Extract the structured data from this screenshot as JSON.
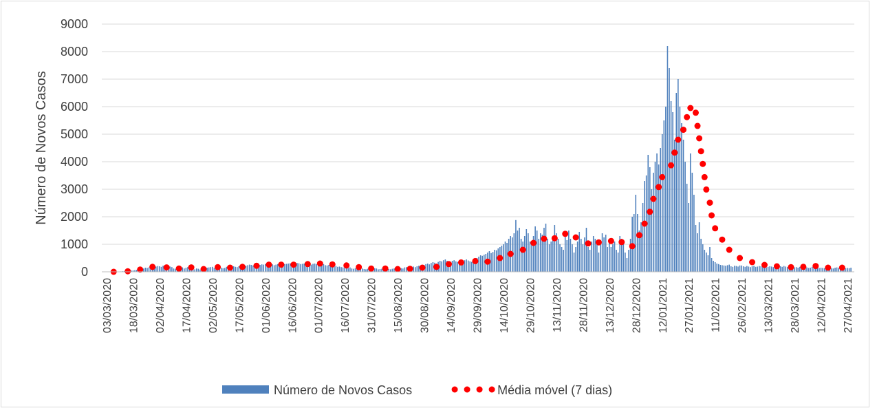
{
  "chart_data": {
    "type": "combo",
    "y_label": "Número de Novos Casos",
    "ylim": [
      0,
      9000
    ],
    "yticks": [
      0,
      1000,
      2000,
      3000,
      4000,
      5000,
      6000,
      7000,
      8000,
      9000
    ],
    "grid": true,
    "legend": "bottom",
    "categories": [
      "03/03/2020",
      null,
      null,
      null,
      null,
      null,
      null,
      null,
      null,
      null,
      null,
      null,
      null,
      null,
      null,
      "18/03/2020",
      null,
      null,
      null,
      null,
      null,
      null,
      null,
      null,
      null,
      null,
      null,
      null,
      null,
      null,
      "02/04/2020",
      null,
      null,
      null,
      null,
      null,
      null,
      null,
      null,
      null,
      null,
      null,
      null,
      null,
      null,
      "17/04/2020",
      null,
      null,
      null,
      null,
      null,
      null,
      null,
      null,
      null,
      null,
      null,
      null,
      null,
      null,
      "02/05/2020",
      null,
      null,
      null,
      null,
      null,
      null,
      null,
      null,
      null,
      null,
      null,
      null,
      null,
      null,
      "17/05/2020",
      null,
      null,
      null,
      null,
      null,
      null,
      null,
      null,
      null,
      null,
      null,
      null,
      null,
      null,
      "01/06/2020",
      null,
      null,
      null,
      null,
      null,
      null,
      null,
      null,
      null,
      null,
      null,
      null,
      null,
      null,
      "16/06/2020",
      null,
      null,
      null,
      null,
      null,
      null,
      null,
      null,
      null,
      null,
      null,
      null,
      null,
      null,
      "01/07/2020",
      null,
      null,
      null,
      null,
      null,
      null,
      null,
      null,
      null,
      null,
      null,
      null,
      null,
      null,
      "16/07/2020",
      null,
      null,
      null,
      null,
      null,
      null,
      null,
      null,
      null,
      null,
      null,
      null,
      null,
      null,
      "31/07/2020",
      null,
      null,
      null,
      null,
      null,
      null,
      null,
      null,
      null,
      null,
      null,
      null,
      null,
      null,
      "15/08/2020",
      null,
      null,
      null,
      null,
      null,
      null,
      null,
      null,
      null,
      null,
      null,
      null,
      null,
      null,
      "30/08/2020",
      null,
      null,
      null,
      null,
      null,
      null,
      null,
      null,
      null,
      null,
      null,
      null,
      null,
      null,
      "14/09/2020",
      null,
      null,
      null,
      null,
      null,
      null,
      null,
      null,
      null,
      null,
      null,
      null,
      null,
      null,
      "29/09/2020",
      null,
      null,
      null,
      null,
      null,
      null,
      null,
      null,
      null,
      null,
      null,
      null,
      null,
      null,
      "14/10/2020",
      null,
      null,
      null,
      null,
      null,
      null,
      null,
      null,
      null,
      null,
      null,
      null,
      null,
      null,
      "29/10/2020",
      null,
      null,
      null,
      null,
      null,
      null,
      null,
      null,
      null,
      null,
      null,
      null,
      null,
      null,
      "13/11/2020",
      null,
      null,
      null,
      null,
      null,
      null,
      null,
      null,
      null,
      null,
      null,
      null,
      null,
      null,
      "28/11/2020",
      null,
      null,
      null,
      null,
      null,
      null,
      null,
      null,
      null,
      null,
      null,
      null,
      null,
      null,
      "13/12/2020",
      null,
      null,
      null,
      null,
      null,
      null,
      null,
      null,
      null,
      null,
      null,
      null,
      null,
      null,
      "28/12/2020",
      null,
      null,
      null,
      null,
      null,
      null,
      null,
      null,
      null,
      null,
      null,
      null,
      null,
      null,
      "12/01/2021",
      null,
      null,
      null,
      null,
      null,
      null,
      null,
      null,
      null,
      null,
      null,
      null,
      null,
      null,
      "27/01/2021",
      null,
      null,
      null,
      null,
      null,
      null,
      null,
      null,
      null,
      null,
      null,
      null,
      null,
      null,
      "11/02/2021",
      null,
      null,
      null,
      null,
      null,
      null,
      null,
      null,
      null,
      null,
      null,
      null,
      null,
      null,
      "26/02/2021",
      null,
      null,
      null,
      null,
      null,
      null,
      null,
      null,
      null,
      null,
      null,
      null,
      null,
      null,
      "13/03/2021",
      null,
      null,
      null,
      null,
      null,
      null,
      null,
      null,
      null,
      null,
      null,
      null,
      null,
      null,
      "28/03/2021",
      null,
      null,
      null,
      null,
      null,
      null,
      null,
      null,
      null,
      null,
      null,
      null,
      null,
      null,
      "12/04/2021",
      null,
      null,
      null,
      null,
      null,
      null,
      null,
      null,
      null,
      null,
      null,
      null,
      null,
      null,
      "27/04/2021",
      null,
      null
    ],
    "series": [
      {
        "name": "Número de Novos Casos",
        "type": "bar",
        "color": "#4f81bd",
        "values": [
          0,
          0,
          1,
          2,
          3,
          5,
          8,
          10,
          15,
          20,
          25,
          30,
          35,
          40,
          45,
          50,
          60,
          70,
          80,
          90,
          100,
          120,
          150,
          140,
          160,
          180,
          200,
          170,
          190,
          210,
          200,
          180,
          220,
          160,
          150,
          140,
          190,
          170,
          120,
          110,
          150,
          130,
          140,
          160,
          120,
          150,
          170,
          140,
          130,
          100,
          90,
          120,
          110,
          80,
          100,
          130,
          120,
          150,
          160,
          170,
          180,
          140,
          120,
          170,
          160,
          150,
          130,
          140,
          180,
          170,
          160,
          190,
          200,
          180,
          170,
          200,
          190,
          230,
          210,
          220,
          240,
          260,
          250,
          230,
          270,
          280,
          260,
          250,
          270,
          260,
          280,
          250,
          260,
          290,
          270,
          240,
          260,
          280,
          300,
          270,
          250,
          280,
          290,
          300,
          310,
          290,
          280,
          300,
          320,
          310,
          280,
          290,
          300,
          310,
          330,
          280,
          260,
          290,
          300,
          280,
          270,
          250,
          260,
          280,
          240,
          230,
          250,
          220,
          200,
          230,
          210,
          180,
          190,
          170,
          160,
          150,
          140,
          130,
          160,
          120,
          110,
          130,
          120,
          100,
          110,
          120,
          100,
          90,
          110,
          120,
          110,
          100,
          130,
          120,
          90,
          100,
          110,
          120,
          130,
          110,
          100,
          90,
          110,
          120,
          130,
          140,
          150,
          130,
          120,
          160,
          170,
          150,
          160,
          180,
          190,
          170,
          200,
          220,
          210,
          230,
          250,
          280,
          300,
          270,
          320,
          350,
          330,
          300,
          360,
          400,
          380,
          420,
          450,
          400,
          380,
          350,
          400,
          420,
          380,
          360,
          340,
          380,
          400,
          420,
          450,
          410,
          380,
          360,
          420,
          480,
          500,
          550,
          600,
          580,
          620,
          650,
          700,
          750,
          680,
          720,
          800,
          780,
          850,
          900,
          950,
          1000,
          1100,
          1050,
          1200,
          1300,
          1250,
          1400,
          1880,
          1500,
          1600,
          1200,
          1100,
          1300,
          1550,
          1400,
          1100,
          1000,
          1300,
          1650,
          1500,
          1200,
          1400,
          1350,
          1600,
          1750,
          1200,
          1000,
          1100,
          1300,
          1700,
          1400,
          1200,
          1000,
          900,
          800,
          1300,
          1150,
          1500,
          1200,
          1000,
          700,
          900,
          1100,
          1450,
          1200,
          1000,
          1250,
          1600,
          900,
          800,
          1100,
          1300,
          1200,
          1000,
          700,
          1150,
          1400,
          1250,
          1350,
          900,
          1200,
          900,
          1000,
          1100,
          800,
          700,
          1300,
          1200,
          1000,
          700,
          500,
          800,
          1200,
          2000,
          2100,
          2800,
          2100,
          1500,
          1800,
          2500,
          3300,
          3500,
          4250,
          3800,
          3000,
          3600,
          4000,
          4300,
          3900,
          4500,
          5000,
          5500,
          6000,
          8200,
          7400,
          6200,
          5800,
          4800,
          6500,
          7000,
          6000,
          5400,
          4800,
          4000,
          3200,
          2500,
          4300,
          3600,
          2800,
          1700,
          1400,
          1800,
          1200,
          1000,
          800,
          700,
          600,
          900,
          500,
          400,
          350,
          300,
          280,
          250,
          240,
          230,
          220,
          240,
          260,
          200,
          180,
          220,
          210,
          190,
          230,
          230,
          200,
          180,
          210,
          190,
          170,
          200,
          220,
          180,
          190,
          210,
          200,
          230,
          170,
          160,
          180,
          200,
          190,
          170,
          210,
          230,
          220,
          200,
          180,
          210,
          190,
          170,
          200,
          220,
          180,
          160,
          170,
          150,
          180,
          190,
          200,
          170,
          160,
          140,
          150,
          180,
          170,
          160,
          150,
          140,
          150,
          140,
          130,
          160,
          150,
          140,
          130,
          120,
          150,
          160,
          140,
          130,
          150,
          140,
          130,
          140,
          130,
          150
        ]
      },
      {
        "name": "Média móvel (7 dias)",
        "type": "scatter",
        "color": "#ff0000",
        "values": [
          null,
          null,
          null,
          null,
          0,
          null,
          null,
          null,
          null,
          null,
          null,
          null,
          20,
          null,
          null,
          null,
          null,
          null,
          null,
          80,
          null,
          null,
          null,
          null,
          null,
          null,
          180,
          null,
          null,
          null,
          null,
          null,
          null,
          null,
          160,
          null,
          null,
          null,
          null,
          null,
          null,
          120,
          null,
          null,
          null,
          null,
          null,
          null,
          160,
          null,
          null,
          null,
          null,
          null,
          null,
          100,
          null,
          null,
          null,
          null,
          null,
          null,
          null,
          170,
          null,
          null,
          null,
          null,
          null,
          null,
          150,
          null,
          null,
          null,
          null,
          null,
          null,
          180,
          null,
          null,
          null,
          null,
          null,
          null,
          null,
          220,
          null,
          null,
          null,
          null,
          null,
          null,
          260,
          null,
          null,
          null,
          null,
          null,
          null,
          260,
          null,
          null,
          null,
          null,
          null,
          null,
          260,
          null,
          null,
          null,
          null,
          null,
          null,
          null,
          280,
          null,
          null,
          null,
          null,
          null,
          null,
          300,
          null,
          null,
          null,
          null,
          null,
          null,
          270,
          null,
          null,
          null,
          null,
          null,
          null,
          null,
          230,
          null,
          null,
          null,
          null,
          null,
          null,
          170,
          null,
          null,
          null,
          null,
          null,
          null,
          120,
          null,
          null,
          null,
          null,
          null,
          null,
          null,
          120,
          null,
          null,
          null,
          null,
          null,
          null,
          100,
          null,
          null,
          null,
          null,
          null,
          null,
          110,
          null,
          null,
          null,
          null,
          null,
          null,
          150,
          null,
          null,
          null,
          null,
          null,
          null,
          null,
          180,
          null,
          null,
          null,
          null,
          null,
          null,
          280,
          null,
          null,
          null,
          null,
          null,
          null,
          340,
          null,
          null,
          null,
          null,
          null,
          null,
          null,
          390,
          null,
          null,
          null,
          null,
          null,
          null,
          370,
          null,
          null,
          null,
          null,
          null,
          null,
          500,
          null,
          null,
          null,
          null,
          null,
          650,
          null,
          null,
          null,
          null,
          null,
          null,
          800,
          null,
          null,
          null,
          null,
          null,
          1050,
          null,
          null,
          null,
          null,
          null,
          1200,
          null,
          null,
          null,
          null,
          null,
          1220,
          null,
          null,
          null,
          null,
          null,
          1380,
          null,
          null,
          null,
          null,
          null,
          1250,
          null,
          null,
          null,
          null,
          null,
          null,
          1030,
          null,
          null,
          null,
          null,
          null,
          1070,
          null,
          null,
          null,
          null,
          null,
          null,
          1120,
          null,
          null,
          null,
          null,
          null,
          1080,
          null,
          null,
          null,
          null,
          null,
          930,
          null,
          null,
          null,
          1330,
          null,
          null,
          1750,
          null,
          null,
          2180,
          null,
          2650,
          null,
          null,
          3080,
          null,
          3440,
          null,
          null,
          null,
          null,
          3870,
          null,
          4330,
          null,
          4800,
          null,
          null,
          5160,
          null,
          5620,
          null,
          5950,
          null,
          null,
          5780,
          5300,
          4850,
          4380,
          3920,
          3440,
          2990,
          null,
          2510,
          2050,
          null,
          1580,
          null,
          null,
          null,
          1170,
          null,
          null,
          null,
          800,
          null,
          null,
          null,
          null,
          null,
          500,
          null,
          null,
          null,
          null,
          null,
          null,
          350,
          null,
          null,
          null,
          null,
          null,
          null,
          250,
          null,
          null,
          null,
          null,
          null,
          null,
          200,
          null,
          null,
          null,
          null,
          null,
          null,
          null,
          170,
          null,
          null,
          null,
          null,
          null,
          null,
          180,
          null,
          null,
          null,
          null,
          null,
          null,
          210,
          null,
          null,
          null,
          null,
          null,
          null,
          150,
          null,
          null,
          null,
          null,
          null,
          null,
          null,
          150,
          null,
          null,
          null,
          null,
          null
        ]
      }
    ]
  }
}
